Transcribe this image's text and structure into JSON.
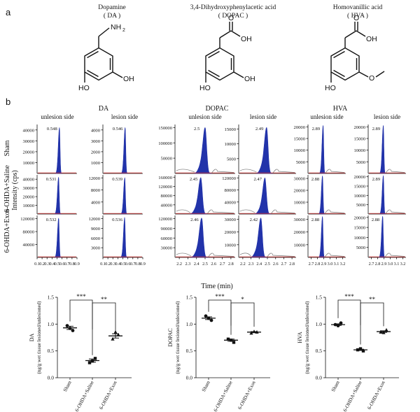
{
  "panel_a": {
    "label": "a",
    "compounds": [
      {
        "name": "Dopamine",
        "abbr": "( DA )",
        "groups": [
          "NH",
          "2",
          "HO",
          "OH"
        ]
      },
      {
        "name": "3,4-Dihydroxyphenylacetic acid",
        "abbr": "( DOPAC )",
        "groups": [
          "O",
          "OH",
          "HO",
          "OH"
        ]
      },
      {
        "name": "Homovanillic acid",
        "abbr": "( HVA )",
        "groups": [
          "O",
          "OH",
          "HO",
          "O"
        ]
      }
    ]
  },
  "panel_b": {
    "label": "b",
    "ylabel": "Intensity (cps)",
    "xlabel": "Time (min)",
    "analytes": [
      "DA",
      "DOPAC",
      "HVA"
    ],
    "sides": [
      "unlesion side",
      "lesion side"
    ],
    "rows": [
      "Sham",
      "6-OHDA+Saline",
      "6-OHDA+Exos"
    ]
  },
  "colors": {
    "peak": "#2233aa",
    "baseline": "#cc3333",
    "tail": "#777777"
  },
  "chart_data": [
    {
      "type": "line",
      "analyte": "DA",
      "x_ticks": [
        "0.1",
        "0.2",
        "0.3",
        "0.4",
        "0.5",
        "0.6",
        "0.7",
        "0.8",
        "0.9"
      ],
      "xlim": [
        0.1,
        0.9
      ],
      "panels": [
        {
          "row": "Sham",
          "side": "unlesion",
          "peak_rt": "0.548",
          "yticks": [
            "10000",
            "20000",
            "30000",
            "40000"
          ],
          "ymax": 45000,
          "peak_height": 42000
        },
        {
          "row": "Sham",
          "side": "lesion",
          "peak_rt": "0.546",
          "yticks": [
            "1000",
            "2000",
            "3000",
            "4000"
          ],
          "ymax": 4500,
          "peak_height": 4200
        },
        {
          "row": "6-OHDA+Saline",
          "side": "unlesion",
          "peak_rt": "0.531",
          "yticks": [
            "10000",
            "20000",
            "30000",
            "40000"
          ],
          "ymax": 45000,
          "peak_height": 42000
        },
        {
          "row": "6-OHDA+Saline",
          "side": "lesion",
          "peak_rt": "0.539",
          "yticks": [
            "4000",
            "8000",
            "12000"
          ],
          "ymax": 13000,
          "peak_height": 12000
        },
        {
          "row": "6-OHDA+Exos",
          "side": "unlesion",
          "peak_rt": "0.532",
          "yticks": [
            "40000",
            "80000",
            "120000"
          ],
          "ymax": 130000,
          "peak_height": 121000
        },
        {
          "row": "6-OHDA+Exos",
          "side": "lesion",
          "peak_rt": "0.536",
          "yticks": [
            "3000",
            "6000",
            "9000",
            "12000"
          ],
          "ymax": 13000,
          "peak_height": 12300
        }
      ]
    },
    {
      "type": "line",
      "analyte": "DOPAC",
      "x_ticks": [
        "2.2",
        "2.3",
        "2.4",
        "2.5",
        "2.6",
        "2.7",
        "2.8"
      ],
      "xlim": [
        2.15,
        2.85
      ],
      "panels": [
        {
          "row": "Sham",
          "side": "unlesion",
          "peak_rt": "2.5",
          "yticks": [
            "50000",
            "100000",
            "150000"
          ],
          "ymax": 160000,
          "peak_height": 150000
        },
        {
          "row": "Sham",
          "side": "lesion",
          "peak_rt": "2.49",
          "yticks": [
            "5000",
            "10000",
            "15000"
          ],
          "ymax": 16500,
          "peak_height": 15500
        },
        {
          "row": "6-OHDA+Saline",
          "side": "unlesion",
          "peak_rt": "2.45",
          "yticks": [
            "40000",
            "80000",
            "120000",
            "160000"
          ],
          "ymax": 170000,
          "peak_height": 158000
        },
        {
          "row": "6-OHDA+Saline",
          "side": "lesion",
          "peak_rt": "2.47",
          "yticks": [
            "40000",
            "80000",
            "120000"
          ],
          "ymax": 130000,
          "peak_height": 120000
        },
        {
          "row": "6-OHDA+Exos",
          "side": "unlesion",
          "peak_rt": "2.46",
          "yticks": [
            "30000",
            "60000",
            "90000",
            "120000"
          ],
          "ymax": 130000,
          "peak_height": 122000
        },
        {
          "row": "6-OHDA+Exos",
          "side": "lesion",
          "peak_rt": "2.42",
          "yticks": [
            "10000",
            "20000",
            "30000"
          ],
          "ymax": 33000,
          "peak_height": 31000
        }
      ]
    },
    {
      "type": "line",
      "analyte": "HVA",
      "x_ticks": [
        "2.7",
        "2.8",
        "2.9",
        "3.0",
        "3.1",
        "3.2"
      ],
      "xlim": [
        2.65,
        3.25
      ],
      "panels": [
        {
          "row": "Sham",
          "side": "unlesion",
          "peak_rt": "2.89",
          "yticks": [
            "5000",
            "10000",
            "15000",
            "20000"
          ],
          "ymax": 21000,
          "peak_height": 20500
        },
        {
          "row": "Sham",
          "side": "lesion",
          "peak_rt": "2.89",
          "yticks": [
            "5000",
            "10000",
            "15000",
            "20000"
          ],
          "ymax": 21000,
          "peak_height": 20500
        },
        {
          "row": "6-OHDA+Saline",
          "side": "unlesion",
          "peak_rt": "2.88",
          "yticks": [
            "10000",
            "20000",
            "30000"
          ],
          "ymax": 33000,
          "peak_height": 32000
        },
        {
          "row": "6-OHDA+Saline",
          "side": "lesion",
          "peak_rt": "2.89",
          "yticks": [
            "5000",
            "10000",
            "15000",
            "20000"
          ],
          "ymax": 21000,
          "peak_height": 20500
        },
        {
          "row": "6-OHDA+Exos",
          "side": "unlesion",
          "peak_rt": "2.88",
          "yticks": [
            "10000",
            "20000",
            "30000"
          ],
          "ymax": 33000,
          "peak_height": 32000
        },
        {
          "row": "6-OHDA+Exos",
          "side": "lesion",
          "peak_rt": "2.88",
          "yticks": [
            "5000",
            "10000",
            "15000",
            "20000"
          ],
          "ymax": 21000,
          "peak_height": 20500
        }
      ]
    },
    {
      "type": "scatter",
      "analyte": "DA",
      "ylabel_lines": [
        "DA",
        "(ng/g wet tissue lesioned/unlesioned)"
      ],
      "ylim": [
        0,
        1.5
      ],
      "yticks": [
        "0.0",
        "0.5",
        "1.0",
        "1.5"
      ],
      "categories": [
        "Sham",
        "6-OHDA+Saline",
        "6-OHDA+Exos"
      ],
      "points": [
        [
          0.97,
          0.88,
          0.92
        ],
        [
          0.28,
          0.36,
          0.31
        ],
        [
          0.72,
          0.8,
          0.85
        ]
      ],
      "mean": [
        0.93,
        0.32,
        0.78
      ],
      "sem": [
        0.03,
        0.03,
        0.04
      ],
      "significance": [
        {
          "pair": [
            0,
            1
          ],
          "label": "***"
        },
        {
          "pair": [
            1,
            2
          ],
          "label": "**"
        }
      ]
    },
    {
      "type": "scatter",
      "analyte": "DOPAC",
      "ylabel_lines": [
        "DOPAC",
        "(ng/g wet tissue lesioned/unlesioned)"
      ],
      "ylim": [
        0,
        1.5
      ],
      "yticks": [
        "0.0",
        "0.5",
        "1.0",
        "1.5"
      ],
      "categories": [
        "Sham",
        "6-OHDA+Saline",
        "6-OHDA+Exos"
      ],
      "points": [
        [
          1.15,
          1.07,
          1.11
        ],
        [
          0.72,
          0.66,
          0.7
        ],
        [
          0.83,
          0.85,
          0.86
        ]
      ],
      "mean": [
        1.11,
        0.7,
        0.85
      ],
      "sem": [
        0.025,
        0.02,
        0.01
      ],
      "significance": [
        {
          "pair": [
            0,
            1
          ],
          "label": "***"
        },
        {
          "pair": [
            1,
            2
          ],
          "label": "*"
        }
      ]
    },
    {
      "type": "scatter",
      "analyte": "HVA",
      "ylabel_lines": [
        "HVA",
        "(ng/g wet tissue lesioned/unlesioned)"
      ],
      "ylim": [
        0,
        1.5
      ],
      "yticks": [
        "0.0",
        "0.5",
        "1.0",
        "1.5"
      ],
      "categories": [
        "Sham",
        "6-OHDA+Saline",
        "6-OHDA+Exos"
      ],
      "points": [
        [
          0.99,
          1.02,
          0.97
        ],
        [
          0.52,
          0.5,
          0.54
        ],
        [
          0.85,
          0.89,
          0.84
        ]
      ],
      "mean": [
        0.99,
        0.52,
        0.86
      ],
      "sem": [
        0.015,
        0.012,
        0.015
      ],
      "significance": [
        {
          "pair": [
            0,
            1
          ],
          "label": "***"
        },
        {
          "pair": [
            1,
            2
          ],
          "label": "**"
        }
      ]
    }
  ]
}
